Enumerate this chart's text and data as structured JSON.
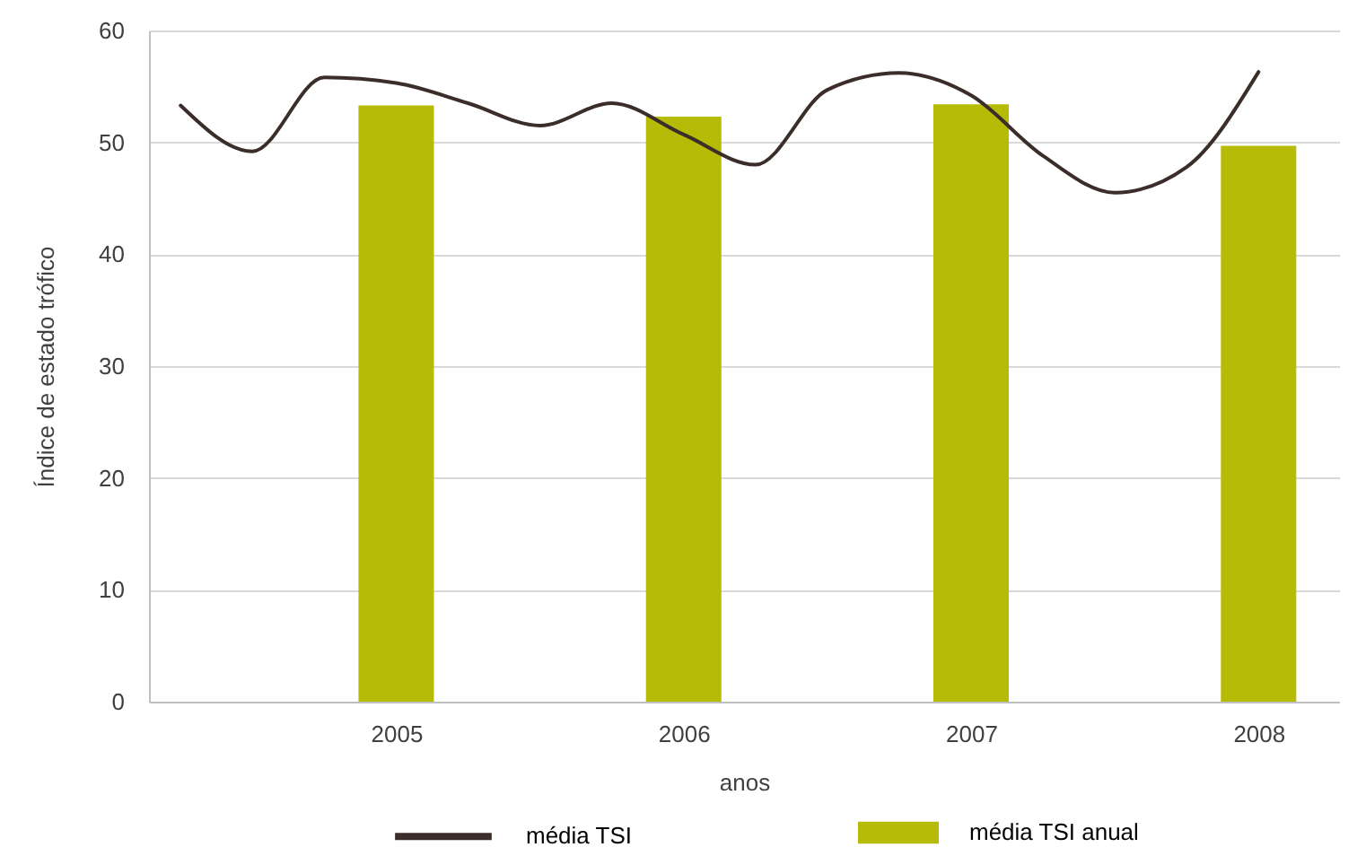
{
  "chart_data": {
    "type": "bar",
    "xlabel": "anos",
    "ylabel": "Índice de estado trófico",
    "x": [
      2005,
      2006,
      2007,
      2008
    ],
    "xlim": [
      2004.14,
      2008.28
    ],
    "xticks": [
      2005,
      2006,
      2007,
      2008
    ],
    "ylim": [
      0,
      60
    ],
    "yticks": [
      0,
      10,
      20,
      30,
      40,
      50,
      60
    ],
    "grid": "y",
    "legend": "bottom",
    "series": [
      {
        "name": "média TSI",
        "type": "line",
        "color": "#3b2e2a",
        "x": [
          2004.25,
          2004.5,
          2004.75,
          2005,
          2005.25,
          2005.5,
          2005.75,
          2006,
          2006.25,
          2006.5,
          2006.75,
          2007,
          2007.25,
          2007.5,
          2007.75,
          2008
        ],
        "values": [
          53.3,
          49.2,
          55.8,
          55.3,
          53.5,
          51.5,
          53.5,
          50.7,
          48.0,
          54.7,
          56.2,
          54.2,
          48.8,
          45.5,
          47.8,
          56.3
        ]
      },
      {
        "name": "média TSI anual",
        "color": "#b5bb06",
        "values": [
          53.3,
          52.3,
          53.4,
          49.7
        ]
      }
    ]
  }
}
